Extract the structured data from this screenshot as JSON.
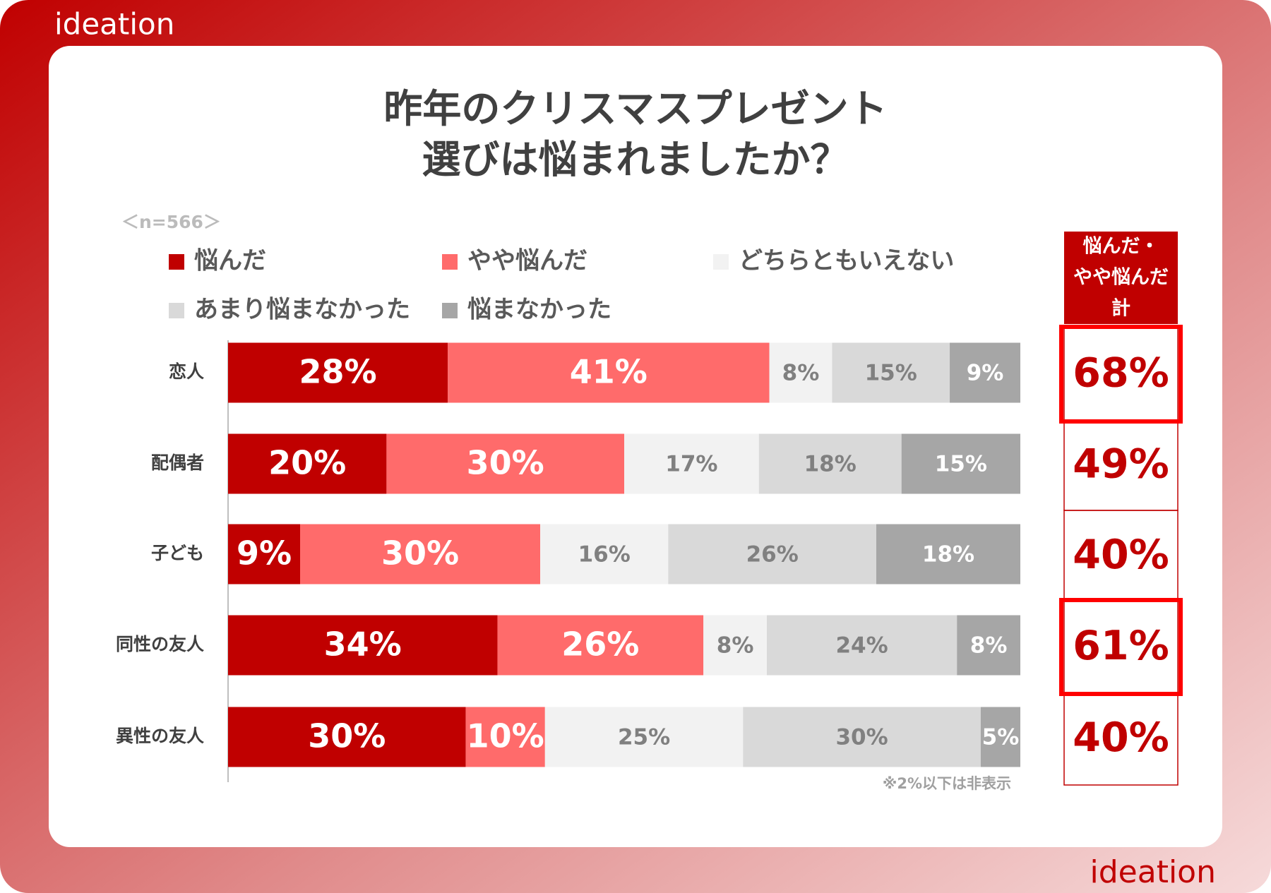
{
  "brand": "ideation",
  "chart_data": {
    "type": "stacked-bar-horizontal",
    "title": [
      "昨年のクリスマスプレゼント",
      "選びは悩まれましたか？"
    ],
    "subtitle": "＜n=566＞",
    "note": "※2%以下は非表示",
    "categories": [
      "恋人",
      "配偶者",
      "子ども",
      "同性の友人",
      "異性の友人"
    ],
    "series": [
      {
        "name": "悩んだ",
        "color": "#c00000",
        "values": [
          28,
          20,
          9,
          34,
          30
        ],
        "value_labels": [
          "28%",
          "20%",
          "9%",
          "34%",
          "30%"
        ]
      },
      {
        "name": "やや悩んだ",
        "color": "#ff6b6b",
        "values": [
          41,
          30,
          30,
          26,
          10
        ],
        "value_labels": [
          "41%",
          "30%",
          "30%",
          "26%",
          "10%"
        ]
      },
      {
        "name": "どちらともいえない",
        "color": "#f2f2f2",
        "values": [
          8,
          17,
          16,
          8,
          25
        ],
        "value_labels": [
          "8%",
          "17%",
          "16%",
          "8%",
          "25%"
        ]
      },
      {
        "name": "あまり悩まなかった",
        "color": "#d9d9d9",
        "values": [
          15,
          18,
          26,
          24,
          30
        ],
        "value_labels": [
          "15%",
          "18%",
          "26%",
          "24%",
          "30%"
        ]
      },
      {
        "name": "悩まなかった",
        "color": "#a6a6a6",
        "values": [
          9,
          15,
          18,
          8,
          5
        ],
        "value_labels": [
          "9%",
          "15%",
          "18%",
          "8%",
          "5%"
        ]
      }
    ],
    "totals": {
      "header": [
        "悩んだ・",
        "やや悩んだ",
        "計"
      ],
      "color": "#c00000",
      "values": [
        68,
        49,
        40,
        61,
        40
      ],
      "value_labels": [
        "68%",
        "49%",
        "40%",
        "61%",
        "40%"
      ],
      "highlighted": [
        true,
        false,
        false,
        true,
        false
      ]
    }
  }
}
